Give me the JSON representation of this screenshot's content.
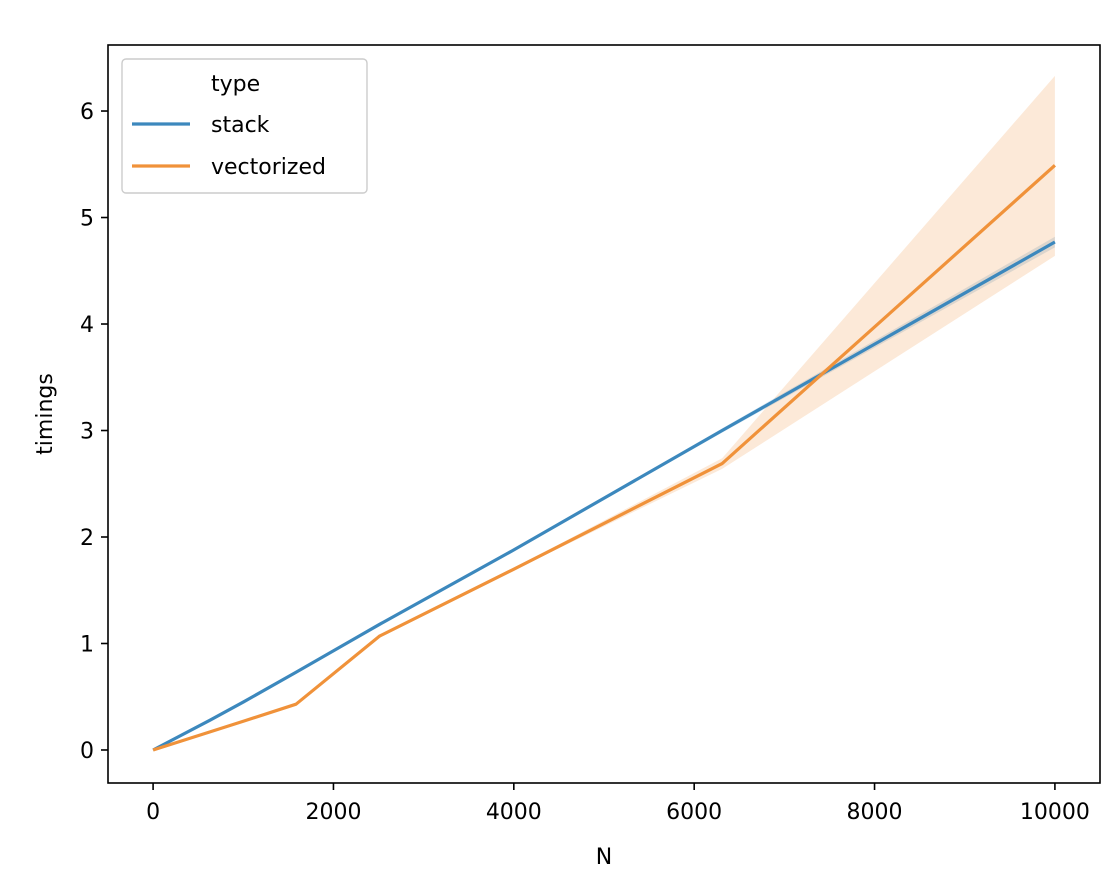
{
  "chart_data": {
    "type": "line",
    "title": "",
    "xlabel": "N",
    "ylabel": "timings",
    "xlim": [
      -500,
      10500
    ],
    "ylim": [
      -0.31,
      6.62
    ],
    "xticks": [
      0,
      2000,
      4000,
      6000,
      8000,
      10000
    ],
    "yticks": [
      0,
      1,
      2,
      3,
      4,
      5,
      6
    ],
    "grid": false,
    "legend": {
      "title": "type",
      "placement": "top-left"
    },
    "series": [
      {
        "name": "stack",
        "color": "#3c88bd",
        "x": [
          0,
          631,
          1000,
          1585,
          2512,
          3981,
          6310,
          10000
        ],
        "y": [
          0,
          0.28,
          0.45,
          0.73,
          1.18,
          1.87,
          3.0,
          4.77
        ],
        "ci_low": [
          0,
          0.27,
          0.44,
          0.72,
          1.17,
          1.86,
          2.98,
          4.72
        ],
        "ci_high": [
          0,
          0.29,
          0.46,
          0.74,
          1.19,
          1.88,
          3.02,
          4.82
        ]
      },
      {
        "name": "vectorized",
        "color": "#f0923a",
        "x": [
          0,
          631,
          1000,
          1585,
          2512,
          3981,
          6310,
          10000
        ],
        "y": [
          0,
          0.17,
          0.27,
          0.43,
          1.07,
          1.69,
          2.69,
          5.49
        ],
        "ci_low": [
          0,
          0.16,
          0.26,
          0.42,
          1.06,
          1.68,
          2.64,
          4.64
        ],
        "ci_high": [
          0,
          0.18,
          0.28,
          0.44,
          1.08,
          1.7,
          2.74,
          6.33
        ]
      }
    ]
  }
}
